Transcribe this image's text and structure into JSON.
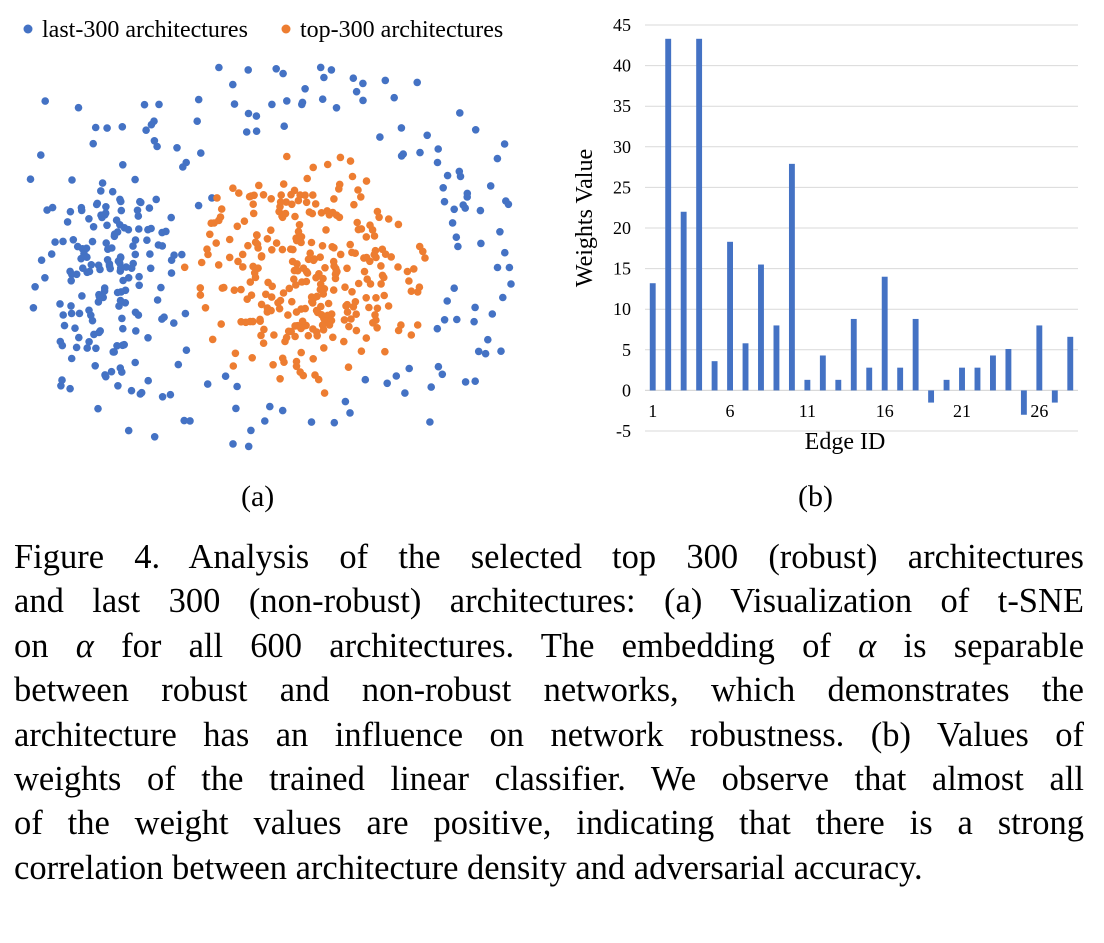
{
  "colors": {
    "last": "#4472c4",
    "top": "#ed7d31",
    "bar": "#4472c4",
    "grid": "#d9d9d9"
  },
  "panel_a": {
    "label": "(a)"
  },
  "panel_b": {
    "label": "(b)"
  },
  "chart_data": [
    {
      "type": "scatter",
      "legend": [
        {
          "name": "last-300 architectures",
          "color": "#4472c4"
        },
        {
          "name": "top-300 architectures",
          "color": "#ed7d31"
        }
      ],
      "legend_position": "top",
      "axes_visible": false,
      "series": [
        {
          "name": "last-300 architectures",
          "points": 300
        },
        {
          "name": "top-300 architectures",
          "points": 300
        }
      ]
    },
    {
      "type": "bar",
      "xlabel": "Edge ID",
      "ylabel": "Weights Value",
      "ylim": [
        -5,
        45
      ],
      "yticks": [
        -5,
        0,
        5,
        10,
        15,
        20,
        25,
        30,
        35,
        40,
        45
      ],
      "xtick_labels": [
        "1",
        "6",
        "11",
        "16",
        "21",
        "26"
      ],
      "grid": "horizontal",
      "categories": [
        1,
        2,
        3,
        4,
        5,
        6,
        7,
        8,
        9,
        10,
        11,
        12,
        13,
        14,
        15,
        16,
        17,
        18,
        19,
        20,
        21,
        22,
        23,
        24,
        25,
        26,
        27,
        28
      ],
      "values": [
        13.2,
        43.3,
        22.0,
        43.3,
        3.6,
        18.3,
        5.8,
        15.5,
        8.0,
        27.9,
        1.3,
        4.3,
        1.3,
        8.8,
        2.8,
        14.0,
        2.8,
        8.8,
        -1.5,
        1.3,
        2.8,
        2.8,
        4.3,
        5.1,
        -3.0,
        8.0,
        -1.5,
        6.6
      ]
    }
  ],
  "caption": {
    "lines": [
      "Figure 4. Analysis of the selected top 300 (robust) architectures",
      "and last 300 (non-robust) architectures: (a) Visualization of t-SNE",
      "on α for all 600 architectures. The embedding of α is separable",
      "between robust and non-robust networks, which demonstrates the",
      "architecture has an influence on network robustness. (b) Values of",
      "weights of the trained linear classifier. We observe that almost all",
      "of the weight values are positive, indicating that there is a strong",
      "correlation between architecture density and adversarial accuracy."
    ]
  }
}
